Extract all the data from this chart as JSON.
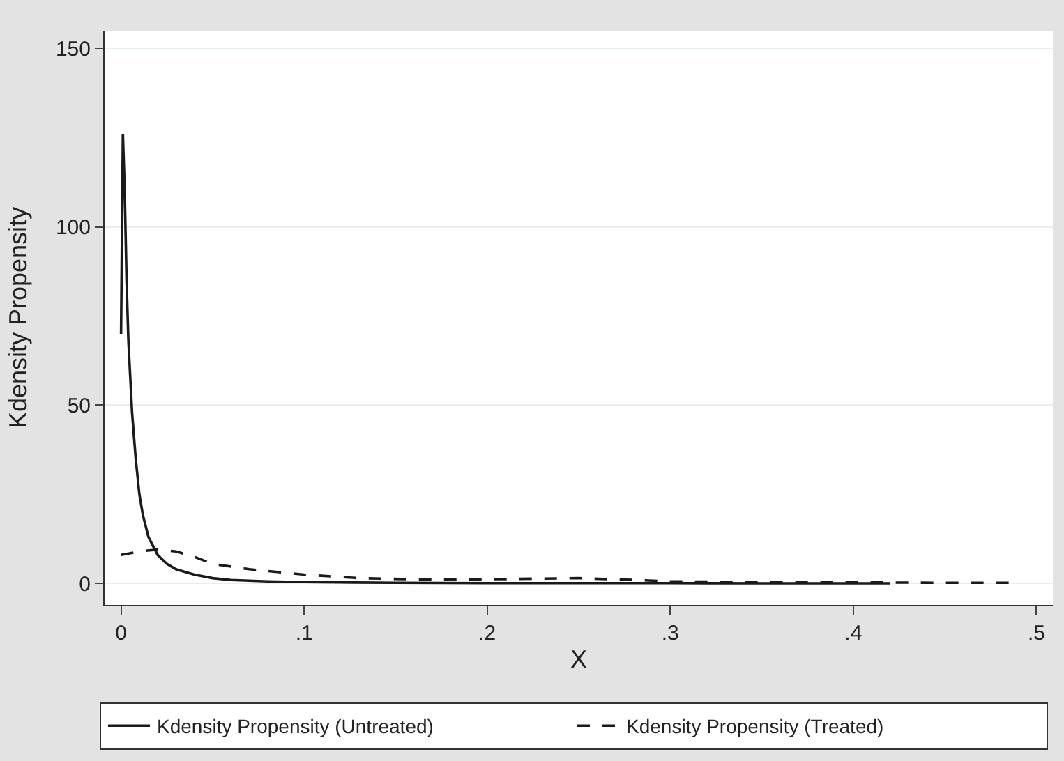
{
  "chart_data": {
    "type": "line",
    "xlabel": "X",
    "ylabel": "Kdensity Propensity",
    "series": [
      {
        "name": "Kdensity Propensity (Untreated)",
        "color": "#1a1a1a",
        "line_style": "solid",
        "x": [
          0.0,
          0.001,
          0.002,
          0.003,
          0.004,
          0.005,
          0.006,
          0.008,
          0.01,
          0.012,
          0.015,
          0.02,
          0.025,
          0.03,
          0.04,
          0.05,
          0.06,
          0.07,
          0.08,
          0.1,
          0.12,
          0.15,
          0.2,
          0.25,
          0.3,
          0.35,
          0.42
        ],
        "values": [
          70,
          126,
          110,
          85,
          68,
          58,
          48,
          35,
          25,
          19,
          13,
          8,
          5.5,
          4,
          2.5,
          1.5,
          1,
          0.8,
          0.6,
          0.4,
          0.3,
          0.2,
          0.1,
          0.1,
          0.1,
          0.05,
          0.05
        ]
      },
      {
        "name": "Kdensity Propensity (Treated)",
        "color": "#1a1a1a",
        "line_style": "dashed",
        "x": [
          0.0,
          0.01,
          0.02,
          0.03,
          0.04,
          0.05,
          0.07,
          0.1,
          0.13,
          0.17,
          0.2,
          0.25,
          0.28,
          0.3,
          0.35,
          0.4,
          0.45,
          0.485
        ],
        "values": [
          8,
          9,
          9.5,
          9,
          7.5,
          5.5,
          4,
          2.5,
          1.5,
          1.1,
          1.2,
          1.5,
          1,
          0.6,
          0.4,
          0.3,
          0.2,
          0.2
        ]
      }
    ],
    "xlim": [
      -0.009,
      0.509
    ],
    "ylim": [
      -6,
      155
    ],
    "xticks": [
      0,
      {
        "value": 0.1,
        "label": ".1"
      },
      {
        "value": 0.2,
        "label": ".2"
      },
      {
        "value": 0.3,
        "label": ".3"
      },
      {
        "value": 0.4,
        "label": ".4"
      },
      {
        "value": 0.5,
        "label": ".5"
      }
    ],
    "yticks": [
      0,
      50,
      100,
      150
    ],
    "grid": "y",
    "legend": "bottom"
  }
}
